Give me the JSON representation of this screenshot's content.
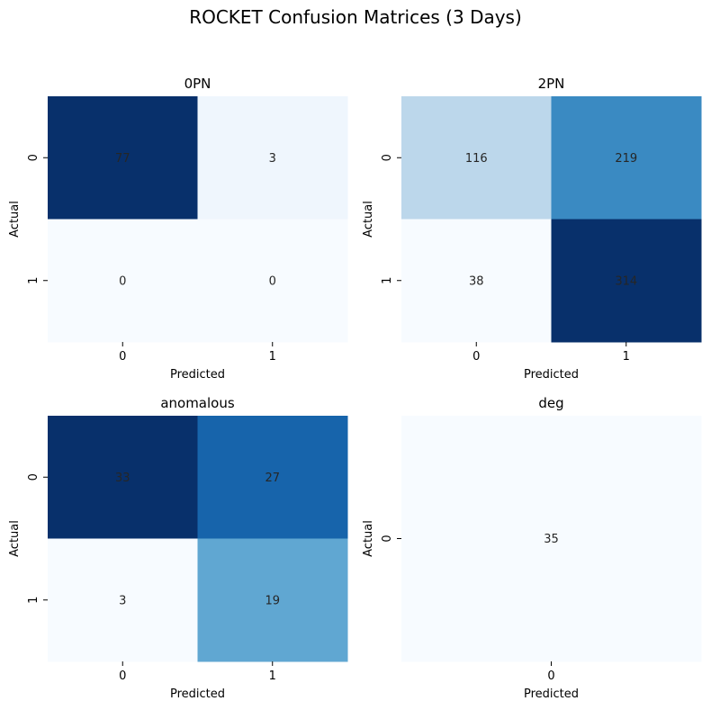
{
  "chart_data": {
    "type": "heatmap",
    "title": "ROCKET Confusion Matrices (3 Days)",
    "colormap": "Blues",
    "panels": [
      {
        "title": "0PN",
        "xlabel": "Predicted",
        "ylabel": "Actual",
        "x_ticks": [
          "0",
          "1"
        ],
        "y_ticks": [
          "0",
          "1"
        ],
        "matrix": [
          [
            77,
            3
          ],
          [
            0,
            0
          ]
        ]
      },
      {
        "title": "2PN",
        "xlabel": "Predicted",
        "ylabel": "Actual",
        "x_ticks": [
          "0",
          "1"
        ],
        "y_ticks": [
          "0",
          "1"
        ],
        "matrix": [
          [
            116,
            219
          ],
          [
            38,
            314
          ]
        ]
      },
      {
        "title": "anomalous",
        "xlabel": "Predicted",
        "ylabel": "Actual",
        "x_ticks": [
          "0",
          "1"
        ],
        "y_ticks": [
          "0",
          "1"
        ],
        "matrix": [
          [
            33,
            27
          ],
          [
            3,
            19
          ]
        ]
      },
      {
        "title": "deg",
        "xlabel": "Predicted",
        "ylabel": "Actual",
        "x_ticks": [
          "0"
        ],
        "y_ticks": [
          "0"
        ],
        "matrix": [
          [
            35
          ]
        ]
      }
    ]
  }
}
